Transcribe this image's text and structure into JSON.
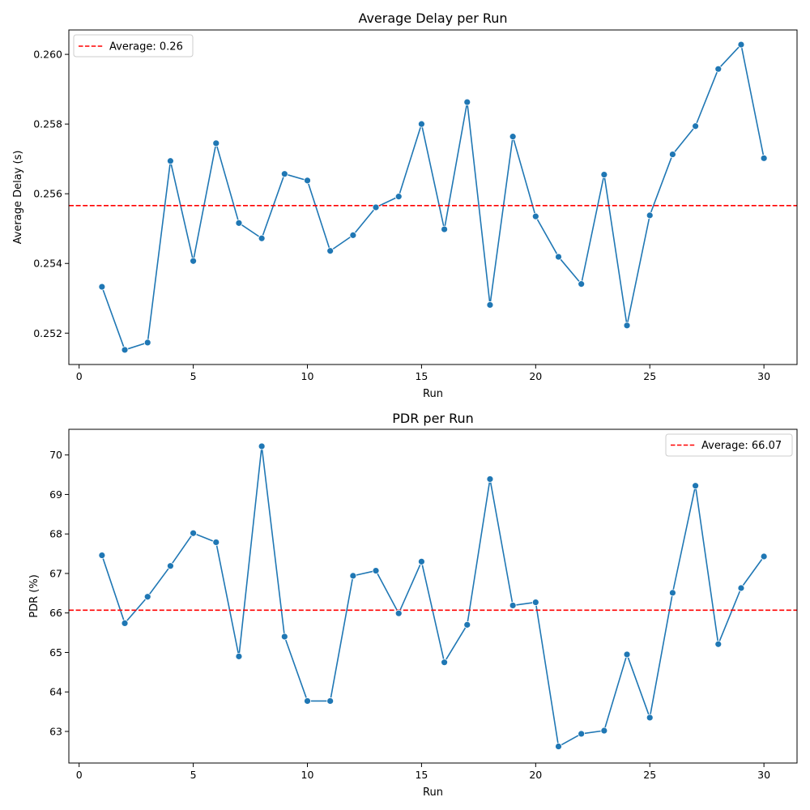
{
  "chart_data": [
    {
      "type": "line",
      "title": "Average Delay per Run",
      "xlabel": "Run",
      "ylabel": "Average Delay (s)",
      "xlim": [
        -0.45,
        31.45
      ],
      "ylim": [
        0.2511,
        0.2607
      ],
      "x_ticks": [
        0,
        5,
        10,
        15,
        20,
        25,
        30
      ],
      "y_ticks": [
        0.252,
        0.254,
        0.256,
        0.258,
        0.26
      ],
      "y_tick_labels": [
        "0.252",
        "0.254",
        "0.256",
        "0.258",
        "0.260"
      ],
      "series_color": "#1f77b4",
      "average_line": {
        "value": 0.25566,
        "label": "Average: 0.26",
        "color": "#ff0000",
        "style": "dashed"
      },
      "legend_position": "top-left",
      "grid": false,
      "x": [
        1,
        2,
        3,
        4,
        5,
        6,
        7,
        8,
        9,
        10,
        11,
        12,
        13,
        14,
        15,
        16,
        17,
        18,
        19,
        20,
        21,
        22,
        23,
        24,
        25,
        26,
        27,
        28,
        29,
        30
      ],
      "values": [
        0.25333,
        0.25152,
        0.25173,
        0.25694,
        0.25407,
        0.25745,
        0.25516,
        0.25472,
        0.25657,
        0.25638,
        0.25436,
        0.25481,
        0.25561,
        0.25592,
        0.258,
        0.25498,
        0.25863,
        0.25281,
        0.25764,
        0.25535,
        0.25419,
        0.25341,
        0.25655,
        0.25222,
        0.25538,
        0.25713,
        0.25794,
        0.25958,
        0.26028,
        0.25702
      ]
    },
    {
      "type": "line",
      "title": "PDR per Run",
      "xlabel": "Run",
      "ylabel": "PDR (%)",
      "xlim": [
        -0.45,
        31.45
      ],
      "ylim": [
        62.2,
        70.65
      ],
      "x_ticks": [
        0,
        5,
        10,
        15,
        20,
        25,
        30
      ],
      "y_ticks": [
        63,
        64,
        65,
        66,
        67,
        68,
        69,
        70
      ],
      "y_tick_labels": [
        "63",
        "64",
        "65",
        "66",
        "67",
        "68",
        "69",
        "70"
      ],
      "series_color": "#1f77b4",
      "average_line": {
        "value": 66.07,
        "label": "Average: 66.07",
        "color": "#ff0000",
        "style": "dashed"
      },
      "legend_position": "top-right",
      "grid": false,
      "x": [
        1,
        2,
        3,
        4,
        5,
        6,
        7,
        8,
        9,
        10,
        11,
        12,
        13,
        14,
        15,
        16,
        17,
        18,
        19,
        20,
        21,
        22,
        23,
        24,
        25,
        26,
        27,
        28,
        29,
        30
      ],
      "values": [
        67.46,
        65.74,
        66.41,
        67.19,
        68.02,
        67.79,
        64.9,
        70.22,
        65.4,
        63.77,
        63.77,
        66.94,
        67.07,
        65.99,
        67.3,
        64.75,
        65.7,
        69.39,
        66.19,
        66.27,
        62.62,
        62.94,
        63.02,
        64.95,
        63.35,
        66.51,
        69.22,
        65.21,
        66.63,
        67.43
      ]
    }
  ]
}
